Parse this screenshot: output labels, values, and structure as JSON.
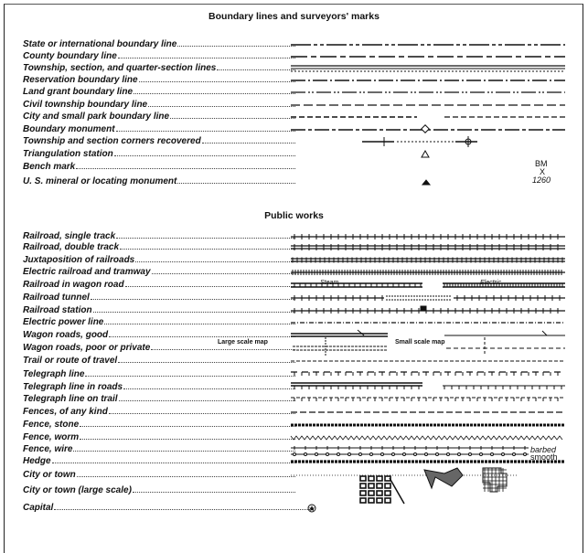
{
  "sections": [
    {
      "title": "Boundary lines and surveyors' marks",
      "rows": [
        {
          "label": "State or international boundary line",
          "symbol": "long-dash-double-dot"
        },
        {
          "label": "County boundary line",
          "symbol": "long-dash-short-dash"
        },
        {
          "label": "Township, section, and quarter-section lines",
          "symbol": "triple-line"
        },
        {
          "label": "Reservation boundary line",
          "symbol": "dash-dot"
        },
        {
          "label": "Land grant boundary line",
          "symbol": "dash-double-dot"
        },
        {
          "label": "Civil township boundary line",
          "symbol": "dash"
        },
        {
          "label": "City and small park boundary line",
          "symbol": "short-dash"
        },
        {
          "label": "Boundary monument",
          "symbol": "diamond-monument"
        },
        {
          "label": "Township and section corners recovered",
          "symbol": "corner-crosses"
        },
        {
          "label": "Triangulation station",
          "symbol": "triangle-outline"
        },
        {
          "label": "Bench mark",
          "symbol": "bench-mark"
        },
        {
          "label": "U. S. mineral or locating monument",
          "symbol": "triangle-filled"
        }
      ]
    },
    {
      "title": "Public works",
      "rows": [
        {
          "label": "Railroad, single track",
          "symbol": "rail-single"
        },
        {
          "label": "Railroad, double track",
          "symbol": "rail-double"
        },
        {
          "label": "Juxtaposition of railroads",
          "symbol": "rail-juxtaposed"
        },
        {
          "label": "Electric railroad and tramway",
          "symbol": "rail-electric"
        },
        {
          "label": "Railroad in wagon road",
          "symbol": "rail-in-road"
        },
        {
          "label": "Railroad tunnel",
          "symbol": "rail-tunnel"
        },
        {
          "label": "Railroad station",
          "symbol": "rail-station"
        },
        {
          "label": "Electric power line",
          "symbol": "power-line"
        },
        {
          "label": "Wagon roads, good",
          "symbol": "road-good"
        },
        {
          "label": "Wagon roads, poor or private",
          "symbol": "road-poor"
        },
        {
          "label": "Trail or route of travel",
          "symbol": "trail"
        },
        {
          "label": "Telegraph line",
          "symbol": "telegraph"
        },
        {
          "label": "Telegraph line in roads",
          "symbol": "telegraph-road"
        },
        {
          "label": "Telegraph line on trail",
          "symbol": "telegraph-trail"
        },
        {
          "label": "Fences, of any kind",
          "symbol": "fence"
        },
        {
          "label": "Fence, stone",
          "symbol": "fence-stone"
        },
        {
          "label": "Fence, worm",
          "symbol": "fence-worm"
        },
        {
          "label": "Fence, wire",
          "symbol": "fence-wire-barbed"
        },
        {
          "label": "Hedge",
          "symbol": "fence-wire-smooth"
        },
        {
          "label": "City or town",
          "symbol": "city-hatched"
        },
        {
          "label": "City or town (large scale)",
          "symbol": "city-plan"
        },
        {
          "label": "Capital",
          "symbol": "capital-star"
        }
      ]
    }
  ],
  "annotations": {
    "steam": "Steam",
    "electric": "Electric",
    "large_scale_map": "Large scale map",
    "small_scale_map": "Small scale map",
    "barbed": "barbed",
    "smooth": "smooth",
    "bm": "BM",
    "bm_x": "X",
    "bm_elevation": "1260"
  }
}
